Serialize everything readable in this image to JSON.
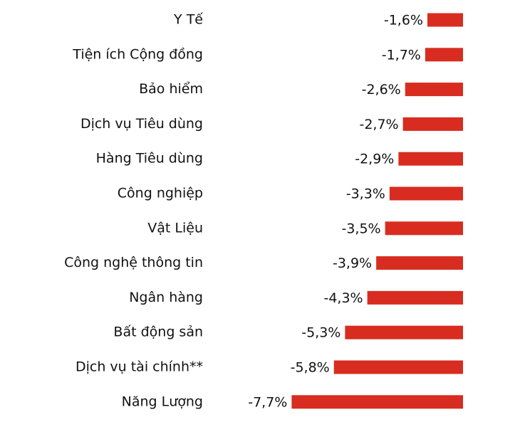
{
  "chart_data": {
    "type": "barh",
    "categories": [
      "Y Tế",
      "Tiện ích Cộng đồng",
      "Bảo hiểm",
      "Dịch vụ Tiêu dùng",
      "Hàng Tiêu dùng",
      "Công nghiệp",
      "Vật Liệu",
      "Công nghệ thông tin",
      "Ngân hàng",
      "Bất động sản",
      "Dịch vụ tài chính**",
      "Năng Lượng"
    ],
    "values": [
      -1.6,
      -1.7,
      -2.6,
      -2.7,
      -2.9,
      -3.3,
      -3.5,
      -3.9,
      -4.3,
      -5.3,
      -5.8,
      -7.7
    ],
    "value_labels": [
      "-1,6%",
      "-1,7%",
      "-2,6%",
      "-2,7%",
      "-2,9%",
      "-3,3%",
      "-3,5%",
      "-3,9%",
      "-4,3%",
      "-5,3%",
      "-5,8%",
      "-7,7%"
    ],
    "color": "#d82c20",
    "xlim": [
      -8,
      0
    ]
  }
}
